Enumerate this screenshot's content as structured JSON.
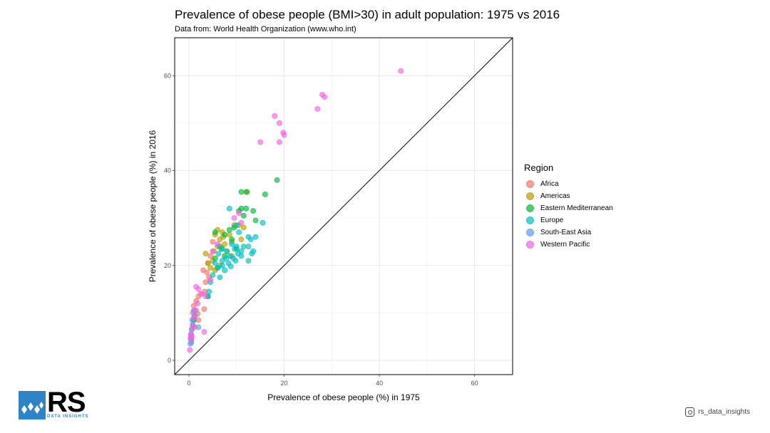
{
  "chart_data": {
    "type": "scatter",
    "title": "Prevalence of obese people (BMI>30) in adult population: 1975 vs 2016",
    "subtitle": "Data from: World Health Organization (www.who.int)",
    "xlabel": "Prevalence of obese people (%) in 1975",
    "ylabel": "Prevalence of obese people (%) in 2016",
    "xlim": [
      -3,
      68
    ],
    "ylim": [
      -3,
      68
    ],
    "xticks": [
      0,
      20,
      40,
      60
    ],
    "yticks": [
      0,
      20,
      40,
      60
    ],
    "grid": true,
    "reference_line": "y = x",
    "legend_title": "Region",
    "legend_position": "right",
    "series": [
      {
        "name": "Africa",
        "color": "#F8766D",
        "points": [
          [
            0.4,
            5.0
          ],
          [
            0.6,
            6.5
          ],
          [
            0.8,
            7.5
          ],
          [
            1.0,
            8.5
          ],
          [
            1.2,
            9.3
          ],
          [
            1.5,
            10.5
          ],
          [
            1.0,
            11.5
          ],
          [
            1.5,
            12.5
          ],
          [
            0.8,
            10.0
          ],
          [
            2.0,
            13.5
          ],
          [
            3.2,
            10.8
          ],
          [
            2.8,
            14.0
          ],
          [
            3.5,
            16.5
          ],
          [
            3.0,
            19.0
          ],
          [
            3.8,
            18.5
          ],
          [
            4.0,
            20.5
          ],
          [
            4.5,
            22.0
          ],
          [
            1.2,
            7.0
          ],
          [
            2.0,
            8.5
          ],
          [
            5.0,
            25.0
          ],
          [
            0.5,
            4.2
          ],
          [
            1.8,
            9.8
          ],
          [
            3.3,
            14.5
          ],
          [
            4.2,
            17.5
          ]
        ]
      },
      {
        "name": "Americas",
        "color": "#B79F00",
        "points": [
          [
            3.5,
            22.5
          ],
          [
            4.0,
            20.5
          ],
          [
            5.0,
            21.0
          ],
          [
            5.5,
            19.0
          ],
          [
            5.2,
            23.0
          ],
          [
            5.5,
            26.5
          ],
          [
            6.0,
            27.5
          ],
          [
            6.5,
            25.5
          ],
          [
            7.0,
            27.0
          ],
          [
            7.5,
            24.5
          ],
          [
            8.5,
            26.5
          ],
          [
            9.0,
            25.0
          ],
          [
            9.5,
            28.5
          ],
          [
            10.5,
            28.5
          ],
          [
            11.5,
            28.0
          ],
          [
            12.0,
            35.5
          ],
          [
            11.0,
            25.5
          ],
          [
            9.0,
            22.0
          ],
          [
            6.5,
            20.0
          ],
          [
            8.0,
            23.0
          ],
          [
            6.0,
            24.0
          ],
          [
            7.2,
            26.0
          ],
          [
            4.5,
            19.5
          ]
        ]
      },
      {
        "name": "Eastern Mediterranean",
        "color": "#00BA38",
        "points": [
          [
            5.5,
            21.5
          ],
          [
            6.5,
            24.0
          ],
          [
            7.5,
            26.5
          ],
          [
            8.5,
            27.5
          ],
          [
            9.0,
            25.5
          ],
          [
            10.0,
            23.5
          ],
          [
            10.5,
            31.5
          ],
          [
            11.0,
            32.0
          ],
          [
            11.5,
            30.5
          ],
          [
            12.0,
            32.0
          ],
          [
            12.2,
            35.5
          ],
          [
            13.5,
            31.5
          ],
          [
            14.0,
            29.5
          ],
          [
            16.0,
            35.0
          ],
          [
            18.5,
            38.0
          ],
          [
            11.0,
            35.5
          ],
          [
            7.5,
            22.0
          ],
          [
            6.0,
            19.5
          ],
          [
            5.5,
            27.0
          ],
          [
            1.0,
            8.5
          ],
          [
            4.0,
            13.5
          ],
          [
            7.0,
            23.5
          ],
          [
            9.5,
            28.0
          ]
        ]
      },
      {
        "name": "Europe",
        "color": "#00BFC4",
        "points": [
          [
            4.0,
            13.5
          ],
          [
            4.5,
            16.5
          ],
          [
            5.0,
            18.0
          ],
          [
            5.5,
            20.5
          ],
          [
            6.0,
            19.5
          ],
          [
            6.2,
            22.5
          ],
          [
            6.5,
            17.5
          ],
          [
            7.0,
            20.0
          ],
          [
            7.5,
            19.0
          ],
          [
            7.8,
            21.5
          ],
          [
            8.0,
            23.0
          ],
          [
            8.3,
            20.5
          ],
          [
            8.6,
            22.0
          ],
          [
            9.0,
            24.5
          ],
          [
            9.3,
            21.5
          ],
          [
            9.6,
            23.5
          ],
          [
            10.0,
            24.0
          ],
          [
            10.3,
            22.5
          ],
          [
            11.0,
            23.0
          ],
          [
            11.5,
            24.0
          ],
          [
            12.5,
            21.0
          ],
          [
            12.5,
            26.0
          ],
          [
            13.0,
            25.5
          ],
          [
            13.5,
            23.0
          ],
          [
            14.0,
            26.0
          ],
          [
            15.5,
            29.0
          ],
          [
            8.5,
            32.0
          ],
          [
            10.0,
            28.5
          ],
          [
            12.5,
            24.0
          ],
          [
            7.0,
            21.0
          ],
          [
            6.8,
            23.5
          ],
          [
            8.8,
            19.8
          ],
          [
            11.0,
            22.0
          ],
          [
            9.8,
            21.0
          ],
          [
            13.2,
            22.5
          ],
          [
            10.5,
            27.0
          ],
          [
            4.2,
            14.5
          ]
        ]
      },
      {
        "name": "South-East Asia",
        "color": "#619CFF",
        "points": [
          [
            0.3,
            3.5
          ],
          [
            0.5,
            4.5
          ],
          [
            0.4,
            5.5
          ],
          [
            0.6,
            6.5
          ],
          [
            0.8,
            7.5
          ],
          [
            0.7,
            8.5
          ],
          [
            1.2,
            9.5
          ],
          [
            1.0,
            10.5
          ],
          [
            2.0,
            7.0
          ],
          [
            0.5,
            3.8
          ]
        ]
      },
      {
        "name": "Western Pacific",
        "color": "#F564E3",
        "points": [
          [
            0.2,
            2.2
          ],
          [
            0.3,
            4.5
          ],
          [
            0.5,
            5.5
          ],
          [
            0.8,
            7.0
          ],
          [
            1.0,
            9.0
          ],
          [
            1.2,
            10.5
          ],
          [
            1.5,
            15.5
          ],
          [
            2.0,
            15.0
          ],
          [
            2.5,
            14.0
          ],
          [
            3.2,
            6.0
          ],
          [
            3.5,
            13.5
          ],
          [
            5.0,
            23.0
          ],
          [
            6.0,
            24.5
          ],
          [
            9.5,
            30.0
          ],
          [
            10.5,
            31.0
          ],
          [
            11.0,
            29.0
          ],
          [
            15.0,
            46.0
          ],
          [
            18.0,
            51.5
          ],
          [
            19.0,
            50.0
          ],
          [
            19.0,
            46.0
          ],
          [
            19.8,
            48.0
          ],
          [
            20.0,
            47.5
          ],
          [
            27.0,
            53.0
          ],
          [
            28.0,
            56.0
          ],
          [
            28.5,
            55.5
          ],
          [
            44.5,
            61.0
          ],
          [
            0.6,
            5.0
          ],
          [
            1.8,
            12.0
          ],
          [
            4.5,
            17.0
          ]
        ]
      }
    ]
  },
  "logo": {
    "main": "RS",
    "sub": "DATA INSIGHTS"
  },
  "instagram": {
    "handle": "rs_data_insights",
    "icon": "instagram-icon"
  }
}
